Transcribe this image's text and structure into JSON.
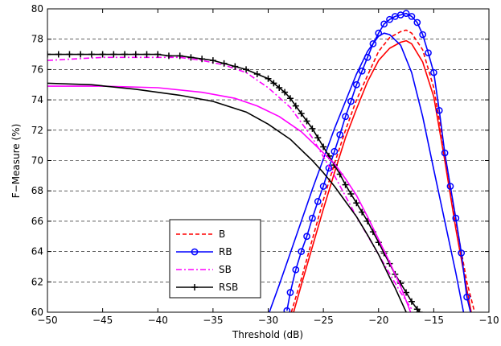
{
  "chart_data": {
    "type": "line",
    "title": "",
    "xlabel": "Threshold (dB)",
    "ylabel": "F−Measure (%)",
    "xlim": [
      -50,
      -10
    ],
    "ylim": [
      60,
      80
    ],
    "xticks": [
      -50,
      -45,
      -40,
      -35,
      -30,
      -25,
      -20,
      -15,
      -10
    ],
    "xtick_labels": [
      "−50",
      "−45",
      "−40",
      "−35",
      "−30",
      "−25",
      "−20",
      "−15",
      "−10"
    ],
    "yticks": [
      60,
      62,
      64,
      66,
      68,
      70,
      72,
      74,
      76,
      78,
      80
    ],
    "ytick_labels": [
      "60",
      "62",
      "64",
      "66",
      "68",
      "70",
      "72",
      "74",
      "76",
      "78",
      "80"
    ],
    "grid": "horizontal dashed",
    "legend_position": "lower-left",
    "legend": [
      {
        "label": "B",
        "color": "#ff0000",
        "style": "dashed",
        "marker": "none"
      },
      {
        "label": "RB",
        "color": "#0000ff",
        "style": "solid",
        "marker": "circle"
      },
      {
        "label": "SB",
        "color": "#ff00ff",
        "style": "dashdot",
        "marker": "none"
      },
      {
        "label": "RSB",
        "color": "#000000",
        "style": "solid",
        "marker": "plus"
      }
    ],
    "series": [
      {
        "name": "B",
        "legend_index": 0,
        "color": "#ff0000",
        "dash": "dashed",
        "marker": "none",
        "x": [
          -27.9,
          -27,
          -26,
          -25,
          -24,
          -23,
          -22,
          -21,
          -20,
          -19,
          -18,
          -17.5,
          -17,
          -16,
          -15,
          -14,
          -13,
          -12,
          -11.3
        ],
        "y": [
          60,
          62.2,
          64.8,
          67.4,
          69.8,
          72,
          74,
          75.6,
          77.2,
          78.1,
          78.5,
          78.6,
          78.4,
          77.3,
          74.8,
          70.5,
          66,
          62,
          60
        ]
      },
      {
        "name": "B (variant)",
        "legend_index": null,
        "color": "#ff0000",
        "dash": "solid",
        "marker": "none",
        "x": [
          -27.7,
          -27,
          -26,
          -25,
          -24,
          -23,
          -22,
          -21,
          -20,
          -19,
          -18,
          -17.5,
          -17,
          -16,
          -15,
          -14,
          -13,
          -12,
          -11.6
        ],
        "y": [
          60,
          61.8,
          64.3,
          66.8,
          69.2,
          71.5,
          73.4,
          75.2,
          76.6,
          77.4,
          77.8,
          77.9,
          77.7,
          76.5,
          74.2,
          70,
          65.5,
          61.5,
          60
        ]
      },
      {
        "name": "RB",
        "legend_index": 1,
        "color": "#0000ff",
        "dash": "solid",
        "marker": "circle",
        "x": [
          -28.3,
          -28,
          -27.5,
          -27,
          -26.5,
          -26,
          -25.5,
          -25,
          -24.5,
          -24,
          -23.5,
          -23,
          -22.5,
          -22,
          -21.5,
          -21,
          -20.5,
          -20,
          -19.5,
          -19,
          -18.5,
          -18,
          -17.5,
          -17,
          -16.5,
          -16,
          -15.5,
          -15,
          -14.5,
          -14,
          -13.5,
          -13,
          -12.5,
          -12,
          -11.5
        ],
        "y": [
          60.1,
          61.3,
          62.8,
          64,
          65,
          66.2,
          67.3,
          68.3,
          69.5,
          70.6,
          71.7,
          72.9,
          73.9,
          75,
          75.9,
          76.8,
          77.7,
          78.4,
          79,
          79.3,
          79.5,
          79.6,
          79.7,
          79.5,
          79.1,
          78.3,
          77.1,
          75.8,
          73.3,
          70.5,
          68.3,
          66.2,
          63.9,
          61,
          59.5
        ]
      },
      {
        "name": "RB (variant)",
        "legend_index": null,
        "color": "#0000ff",
        "dash": "solid",
        "marker": "none",
        "x": [
          -29.9,
          -29,
          -28,
          -27,
          -26,
          -25,
          -24,
          -23,
          -22,
          -21,
          -20,
          -19.5,
          -19,
          -18,
          -17,
          -16,
          -15,
          -14,
          -13,
          -12.3
        ],
        "y": [
          60,
          61.8,
          63.9,
          66,
          68.1,
          70.1,
          72.1,
          73.9,
          75.7,
          77.2,
          78.2,
          78.4,
          78.3,
          77.6,
          75.8,
          72.9,
          69.4,
          66,
          62.6,
          60
        ]
      },
      {
        "name": "SB",
        "legend_index": 2,
        "color": "#ff00ff",
        "dash": "dashdot",
        "marker": "none",
        "x": [
          -50,
          -45,
          -42,
          -40,
          -38,
          -36,
          -34,
          -32,
          -30,
          -28,
          -26,
          -24,
          -22,
          -20,
          -18,
          -17
        ],
        "y": [
          76.6,
          76.8,
          76.8,
          76.8,
          76.8,
          76.6,
          76.3,
          75.8,
          74.8,
          73.5,
          71.5,
          69,
          66.3,
          63.8,
          61.3,
          60.2
        ]
      },
      {
        "name": "RSB",
        "legend_index": 3,
        "color": "#000000",
        "dash": "solid",
        "marker": "plus",
        "x": [
          -50,
          -49,
          -48,
          -47,
          -46,
          -45,
          -44,
          -43,
          -42,
          -41,
          -40,
          -39,
          -38,
          -37,
          -36,
          -35,
          -34,
          -33,
          -32,
          -31,
          -30,
          -29.5,
          -29,
          -28.5,
          -28,
          -27.5,
          -27,
          -26.5,
          -26,
          -25.5,
          -25,
          -24.5,
          -24,
          -23.5,
          -23,
          -22.5,
          -22,
          -21.5,
          -21,
          -20.5,
          -20,
          -19.5,
          -19,
          -18.5,
          -18,
          -17.5,
          -17,
          -16.5,
          -16.3
        ],
        "y": [
          77,
          77,
          77,
          77,
          77,
          77,
          77,
          77,
          77,
          77,
          77,
          76.9,
          76.9,
          76.8,
          76.7,
          76.6,
          76.4,
          76.2,
          76,
          75.7,
          75.4,
          75.1,
          74.8,
          74.5,
          74.1,
          73.6,
          73.1,
          72.6,
          72.1,
          71.5,
          70.9,
          70.3,
          69.7,
          69.1,
          68.4,
          67.8,
          67.2,
          66.6,
          66,
          65.3,
          64.6,
          63.9,
          63.2,
          62.5,
          61.9,
          61.3,
          60.7,
          60.2,
          60
        ]
      },
      {
        "name": "SB (variant)",
        "legend_index": null,
        "color": "#ff00ff",
        "dash": "solid",
        "marker": "none",
        "x": [
          -50,
          -45,
          -40,
          -36,
          -33,
          -31,
          -29,
          -27,
          -25,
          -24,
          -23,
          -22,
          -21,
          -20,
          -19,
          -18,
          -17.1
        ],
        "y": [
          74.9,
          74.9,
          74.8,
          74.5,
          74.1,
          73.6,
          72.9,
          71.9,
          70.5,
          69.8,
          68.8,
          67.7,
          66.3,
          64.8,
          63.3,
          61.7,
          60
        ]
      },
      {
        "name": "RSB (variant)",
        "legend_index": null,
        "color": "#000000",
        "dash": "solid",
        "marker": "none",
        "x": [
          -50,
          -46,
          -42,
          -38,
          -35,
          -32,
          -30,
          -28,
          -26,
          -25,
          -24,
          -23,
          -22,
          -21,
          -20,
          -19,
          -18.5,
          -18,
          -17.5
        ],
        "y": [
          75.1,
          75,
          74.7,
          74.3,
          73.9,
          73.2,
          72.4,
          71.4,
          70,
          69.2,
          68.3,
          67.3,
          66.3,
          65.1,
          63.8,
          62.3,
          61.6,
          60.8,
          60
        ]
      }
    ]
  }
}
